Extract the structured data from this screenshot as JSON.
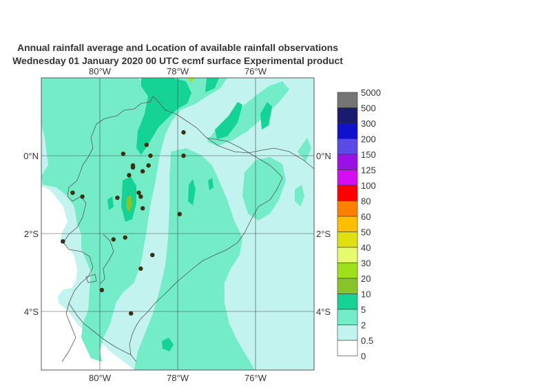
{
  "title_line1": "Annual rainfall average and Location of available rainfall observations",
  "title_line2": "Wednesday 01 January 2020 00 UTC ecmf surface  Experimental product",
  "map": {
    "lon_labels": [
      "80°W",
      "78°W",
      "76°W"
    ],
    "lat_labels": [
      "0°N",
      "2°S",
      "4°S"
    ],
    "lon_range": [
      -81.5,
      -74.5
    ],
    "lat_range": [
      -5.5,
      2.0
    ],
    "gridlines": true
  },
  "legend": {
    "labels": [
      "5000",
      "500",
      "300",
      "200",
      "150",
      "125",
      "100",
      "80",
      "60",
      "50",
      "40",
      "30",
      "20",
      "10",
      "5",
      "2",
      "0.5",
      "0"
    ],
    "colors": [
      "#757575",
      "#1a1a6e",
      "#1111cc",
      "#5a4ae6",
      "#9a11e6",
      "#d40ef0",
      "#ff0000",
      "#ff7f00",
      "#ffbf00",
      "#e0e010",
      "#e6fa6e",
      "#9ee01a",
      "#86c42a",
      "#14d394",
      "#74ecc8",
      "#c2f3ee",
      "#ffffff"
    ]
  },
  "colors": {
    "background": "#ffffff",
    "land_base": "#c2f3ee",
    "band_2_5": "#74ecc8",
    "band_5_10": "#14d394",
    "band_10_20": "#86c42a",
    "band_20_30": "#9ee01a",
    "station": "#3d2f0f"
  },
  "stations": [
    [
      -79.4,
      0.05
    ],
    [
      -79.15,
      -0.25
    ],
    [
      -79.25,
      -0.5
    ],
    [
      -78.8,
      0.28
    ],
    [
      -78.7,
      0.0
    ],
    [
      -77.85,
      0.6
    ],
    [
      -77.85,
      0.0
    ],
    [
      -78.75,
      -0.25
    ],
    [
      -78.9,
      -0.4
    ],
    [
      -79.15,
      -0.3
    ],
    [
      -79.0,
      -0.95
    ],
    [
      -78.95,
      -1.05
    ],
    [
      -79.55,
      -1.08
    ],
    [
      -80.7,
      -0.95
    ],
    [
      -80.45,
      -1.05
    ],
    [
      -78.9,
      -1.35
    ],
    [
      -77.95,
      -1.5
    ],
    [
      -79.65,
      -2.15
    ],
    [
      -79.35,
      -2.1
    ],
    [
      -80.95,
      -2.2
    ],
    [
      -78.65,
      -2.55
    ],
    [
      -78.95,
      -2.9
    ],
    [
      -79.95,
      -3.45
    ],
    [
      -79.2,
      -4.05
    ]
  ]
}
